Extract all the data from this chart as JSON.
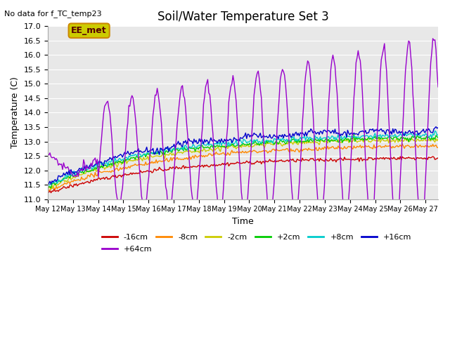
{
  "title": "Soil/Water Temperature Set 3",
  "subtitle": "No data for f_TC_temp23",
  "xlabel": "Time",
  "ylabel": "Temperature (C)",
  "ylim": [
    11.0,
    17.0
  ],
  "yticks": [
    11.0,
    11.5,
    12.0,
    12.5,
    13.0,
    13.5,
    14.0,
    14.5,
    15.0,
    15.5,
    16.0,
    16.5,
    17.0
  ],
  "xtick_labels": [
    "May 12",
    "May 13",
    "May 14",
    "May 15",
    "May 16",
    "May 17",
    "May 18",
    "May 19",
    "May 20",
    "May 21",
    "May 22",
    "May 23",
    "May 24",
    "May 25",
    "May 26",
    "May 27"
  ],
  "legend_entries": [
    "-16cm",
    "-8cm",
    "-2cm",
    "+2cm",
    "+8cm",
    "+16cm",
    "+64cm"
  ],
  "line_colors": {
    "-16cm": "#cc0000",
    "-8cm": "#ff8800",
    "-2cm": "#cccc00",
    "+2cm": "#00cc00",
    "+8cm": "#00cccc",
    "+16cm": "#0000cc",
    "+64cm": "#9900cc"
  },
  "bg_color": "#e8e8e8",
  "annotation_box_color": "#cccc00",
  "annotation_text": "EE_met",
  "annotation_box_edge": "#cc8800"
}
